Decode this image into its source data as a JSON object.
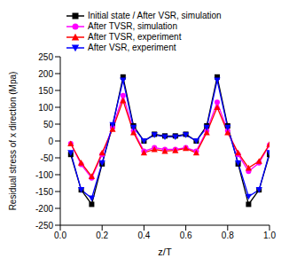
{
  "chart_data": {
    "type": "line",
    "x_label": "z/T",
    "y_label": "Residual stress of x direction (Mpa)",
    "x": [
      0.05,
      0.1,
      0.15,
      0.2,
      0.25,
      0.3,
      0.35,
      0.4,
      0.45,
      0.5,
      0.55,
      0.6,
      0.65,
      0.7,
      0.75,
      0.8,
      0.85,
      0.9,
      0.95,
      1.0
    ],
    "series": [
      {
        "name": "Initial state / After VSR, simulation",
        "color": "#000000",
        "marker": "square",
        "values": [
          -40,
          -145,
          -188,
          -68,
          45,
          190,
          45,
          0,
          20,
          15,
          15,
          20,
          0,
          45,
          190,
          45,
          -68,
          -188,
          -145,
          -40
        ]
      },
      {
        "name": "After TVSR, simulation",
        "color": "#ff00ff",
        "marker": "circle",
        "values": [
          -8,
          -70,
          -110,
          -40,
          40,
          135,
          30,
          -30,
          -20,
          -25,
          -25,
          -20,
          -30,
          30,
          115,
          30,
          -40,
          -90,
          -65,
          -12
        ]
      },
      {
        "name": "After TVSR, experiment",
        "color": "#ff0000",
        "marker": "triangle-up",
        "values": [
          -8,
          -65,
          -105,
          -35,
          35,
          120,
          25,
          -35,
          -25,
          -30,
          -28,
          -22,
          -35,
          25,
          100,
          25,
          -35,
          -80,
          -60,
          -10
        ]
      },
      {
        "name": "After VSR, experiment",
        "color": "#0000ff",
        "marker": "triangle-down",
        "values": [
          -35,
          -145,
          -170,
          -65,
          48,
          180,
          40,
          0,
          18,
          12,
          12,
          18,
          0,
          40,
          180,
          40,
          -65,
          -165,
          -145,
          -35
        ]
      }
    ],
    "xlim": [
      0,
      1
    ],
    "xticks": [
      {
        "value": 0,
        "label": "0.0"
      },
      0.2,
      0.4,
      0.6,
      0.8,
      {
        "value": 1,
        "label": "1.0"
      }
    ],
    "ylim": [
      -250,
      250
    ],
    "yticks": [
      -250,
      -200,
      -150,
      -100,
      -50,
      0,
      50,
      100,
      150,
      200,
      250
    ],
    "grid": false,
    "legend": "top"
  }
}
